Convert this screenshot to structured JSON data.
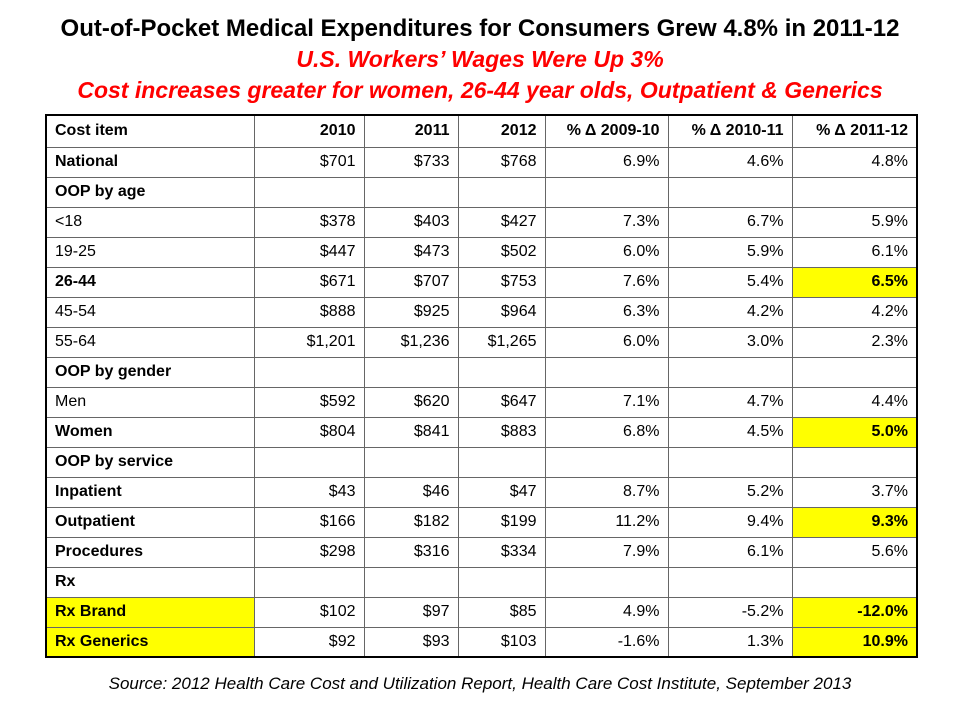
{
  "header": {
    "title": "Out-of-Pocket Medical Expenditures for Consumers Grew 4.8% in 2011-12",
    "subtitle1": "U.S. Workers’ Wages Were Up 3%",
    "subtitle2": "Cost increases greater for women, 26-44 year olds, Outpatient & Generics"
  },
  "colors": {
    "accent_red": "#ff0000",
    "highlight_yellow": "#ffff00",
    "border_inner": "#666666",
    "border_outer": "#000000"
  },
  "table": {
    "columns": [
      "Cost item",
      "2010",
      "2011",
      "2012",
      "% Δ 2009-10",
      "% Δ 2010-11",
      "% Δ 2011-12"
    ],
    "rows": [
      {
        "label": "National",
        "bold": true,
        "red": false,
        "indent": false,
        "label_bg": false,
        "hl_last": false,
        "values": [
          "$701",
          "$733",
          "$768",
          "6.9%",
          "4.6%",
          "4.8%"
        ]
      },
      {
        "label": "OOP by age",
        "bold": true,
        "red": false,
        "indent": false,
        "label_bg": false,
        "hl_last": false,
        "values": [
          "",
          "",
          "",
          "",
          "",
          ""
        ]
      },
      {
        "label": "<18",
        "bold": false,
        "red": false,
        "indent": true,
        "label_bg": false,
        "hl_last": false,
        "values": [
          "$378",
          "$403",
          "$427",
          "7.3%",
          "6.7%",
          "5.9%"
        ]
      },
      {
        "label": "19-25",
        "bold": false,
        "red": false,
        "indent": true,
        "label_bg": false,
        "hl_last": false,
        "values": [
          "$447",
          "$473",
          "$502",
          "6.0%",
          "5.9%",
          "6.1%"
        ]
      },
      {
        "label": "26-44",
        "bold": true,
        "red": true,
        "indent": true,
        "label_bg": false,
        "hl_last": true,
        "values": [
          "$671",
          "$707",
          "$753",
          "7.6%",
          "5.4%",
          "6.5%"
        ]
      },
      {
        "label": "45-54",
        "bold": false,
        "red": false,
        "indent": true,
        "label_bg": false,
        "hl_last": false,
        "values": [
          "$888",
          "$925",
          "$964",
          "6.3%",
          "4.2%",
          "4.2%"
        ]
      },
      {
        "label": "55-64",
        "bold": false,
        "red": false,
        "indent": true,
        "label_bg": false,
        "hl_last": false,
        "values": [
          "$1,201",
          "$1,236",
          "$1,265",
          "6.0%",
          "3.0%",
          "2.3%"
        ]
      },
      {
        "label": "OOP by gender",
        "bold": true,
        "red": false,
        "indent": false,
        "label_bg": false,
        "hl_last": false,
        "values": [
          "",
          "",
          "",
          "",
          "",
          ""
        ]
      },
      {
        "label": "Men",
        "bold": false,
        "red": false,
        "indent": true,
        "label_bg": false,
        "hl_last": false,
        "values": [
          "$592",
          "$620",
          "$647",
          "7.1%",
          "4.7%",
          "4.4%"
        ]
      },
      {
        "label": "Women",
        "bold": true,
        "red": true,
        "indent": true,
        "label_bg": false,
        "hl_last": true,
        "values": [
          "$804",
          "$841",
          "$883",
          "6.8%",
          "4.5%",
          "5.0%"
        ]
      },
      {
        "label": "OOP by service",
        "bold": true,
        "red": false,
        "indent": false,
        "label_bg": false,
        "hl_last": false,
        "values": [
          "",
          "",
          "",
          "",
          "",
          ""
        ]
      },
      {
        "label": "Inpatient",
        "bold": true,
        "red": false,
        "indent": false,
        "label_bg": false,
        "hl_last": false,
        "values": [
          "$43",
          "$46",
          "$47",
          "8.7%",
          "5.2%",
          "3.7%"
        ]
      },
      {
        "label": "Outpatient",
        "bold": true,
        "red": true,
        "indent": false,
        "label_bg": false,
        "hl_last": true,
        "values": [
          "$166",
          "$182",
          "$199",
          "11.2%",
          "9.4%",
          "9.3%"
        ]
      },
      {
        "label": "Procedures",
        "bold": true,
        "red": false,
        "indent": false,
        "label_bg": false,
        "hl_last": false,
        "values": [
          "$298",
          "$316",
          "$334",
          "7.9%",
          "6.1%",
          "5.6%"
        ]
      },
      {
        "label": "Rx",
        "bold": true,
        "red": false,
        "indent": false,
        "label_bg": false,
        "hl_last": false,
        "values": [
          "",
          "",
          "",
          "",
          "",
          ""
        ]
      },
      {
        "label": "Rx Brand",
        "bold": true,
        "red": true,
        "indent": true,
        "label_bg": true,
        "hl_last": true,
        "values": [
          "$102",
          "$97",
          "$85",
          "4.9%",
          "-5.2%",
          "-12.0%"
        ]
      },
      {
        "label": "Rx Generics",
        "bold": true,
        "red": true,
        "indent": true,
        "label_bg": true,
        "hl_last": true,
        "values": [
          "$92",
          "$93",
          "$103",
          "-1.6%",
          "1.3%",
          "10.9%"
        ]
      }
    ]
  },
  "footer": {
    "source": "Source: 2012 Health Care Cost and Utilization Report, Health Care Cost Institute, September 2013"
  }
}
